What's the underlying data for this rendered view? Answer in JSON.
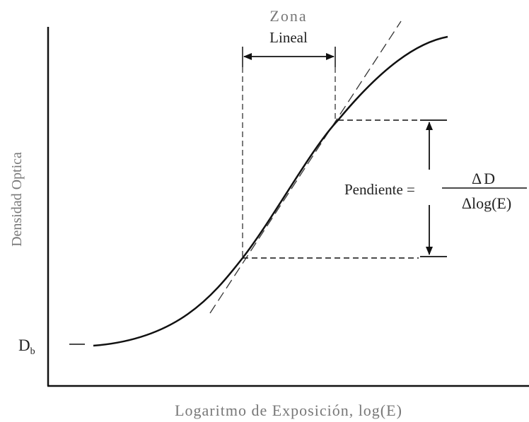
{
  "zone_label": {
    "line1": "Zona",
    "line2": "Lineal"
  },
  "y_axis_label": "Densidad Optica",
  "base_density": {
    "base": "D",
    "sub": "b"
  },
  "slope": {
    "label": "Pendiente =",
    "numerator": "ΔD",
    "denominator": "Δlog(E)"
  },
  "x_axis_label": "Logaritmo de Exposición, log(E)"
}
